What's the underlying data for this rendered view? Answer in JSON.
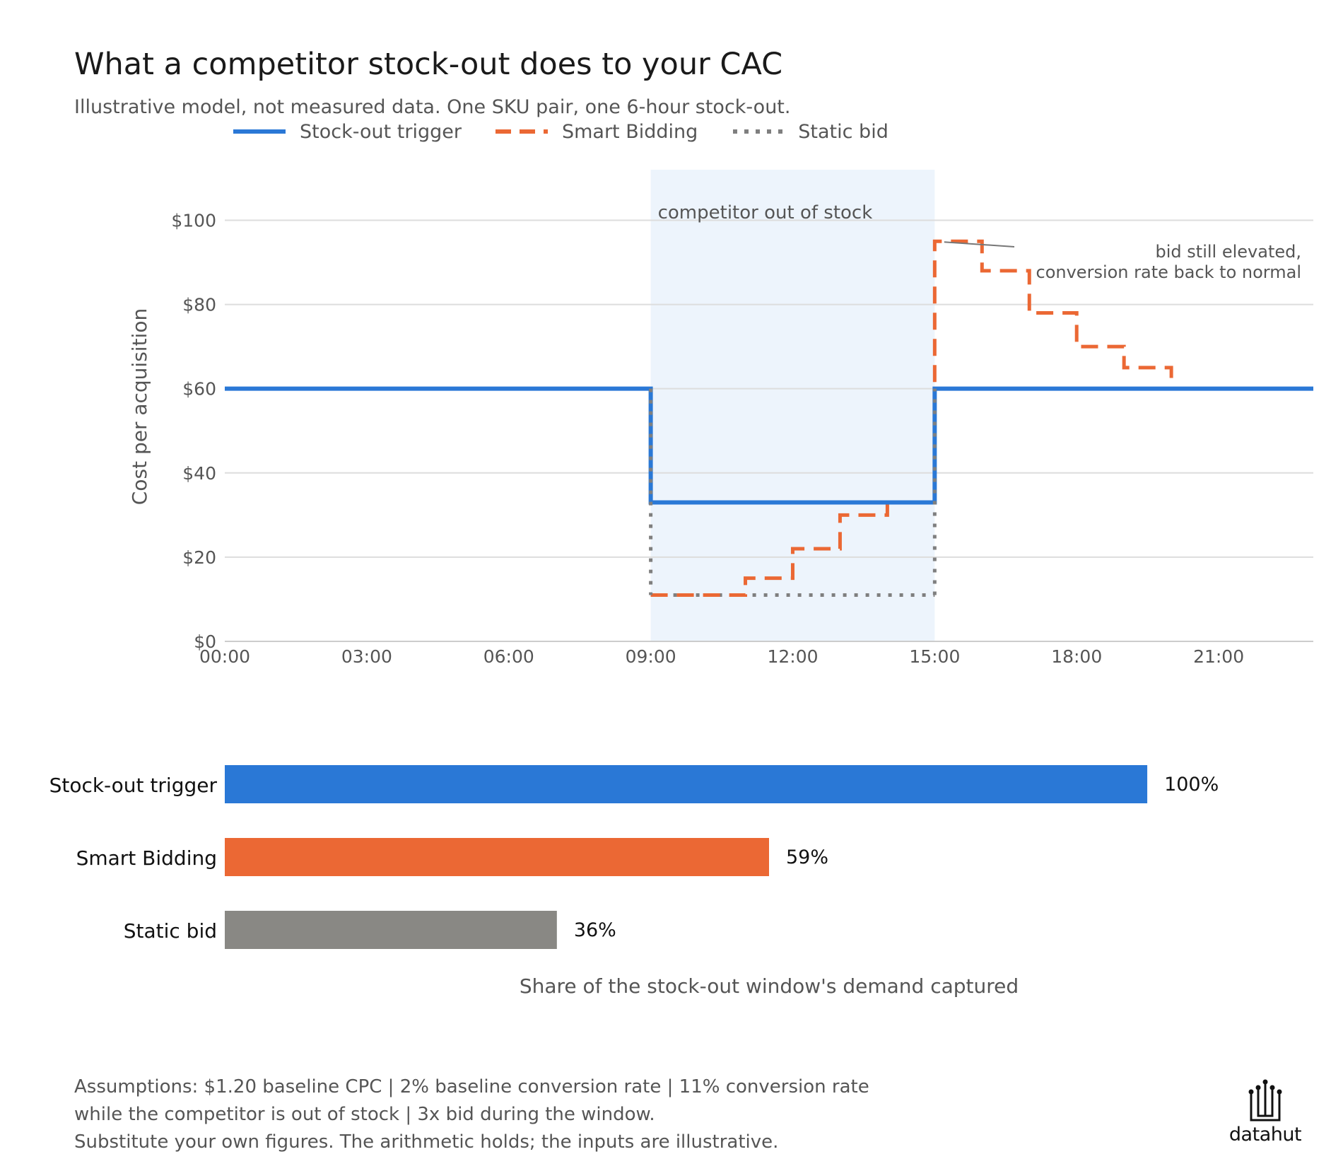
{
  "title": "What a competitor stock-out does to your CAC",
  "subtitle": "Illustrative model, not measured data. One SKU pair, one 6-hour stock-out.",
  "colors": {
    "trigger": "#2a78d6",
    "smart": "#eb6834",
    "static": "#7f7f7f",
    "static_bar": "#898884",
    "band": "#edf4fc",
    "grid": "#dddddd"
  },
  "legend": [
    {
      "label": "Stock-out trigger",
      "color": "#2a78d6",
      "style": "solid"
    },
    {
      "label": "Smart Bidding",
      "color": "#eb6834",
      "style": "dashed"
    },
    {
      "label": "Static bid",
      "color": "#7f7f7f",
      "style": "dotted"
    }
  ],
  "chart_data": [
    {
      "type": "line",
      "ylabel": "Cost per acquisition",
      "xlim": [
        "00:00",
        "23:00"
      ],
      "ylim": [
        0,
        112
      ],
      "x_ticks": [
        "00:00",
        "03:00",
        "06:00",
        "09:00",
        "12:00",
        "15:00",
        "18:00",
        "21:00"
      ],
      "y_ticks": [
        "$0",
        "$20",
        "$40",
        "$60",
        "$80",
        "$100"
      ],
      "grid": true,
      "legend_position": "top",
      "step": "post",
      "shaded_window": {
        "start": "09:00",
        "end": "15:00",
        "label": "competitor out of stock"
      },
      "annotation": {
        "text": [
          "bid still elevated,",
          "conversion rate back to normal"
        ],
        "points_to": {
          "x": "15:30",
          "y": 95
        }
      },
      "series": [
        {
          "name": "Stock-out trigger",
          "style": "solid",
          "x": [
            "00:00",
            "09:00",
            "15:00",
            "23:00"
          ],
          "y": [
            60,
            33,
            60,
            60
          ]
        },
        {
          "name": "Smart Bidding",
          "style": "dashed",
          "x": [
            "09:00",
            "10:00",
            "11:00",
            "12:00",
            "13:00",
            "14:00",
            "15:00",
            "16:00",
            "17:00",
            "18:00",
            "19:00",
            "20:00"
          ],
          "y": [
            11,
            11,
            15,
            22,
            30,
            33,
            95,
            88,
            78,
            70,
            65,
            60
          ]
        },
        {
          "name": "Static bid",
          "style": "dotted",
          "x": [
            "09:00",
            "15:00"
          ],
          "y": [
            11,
            11
          ]
        }
      ]
    },
    {
      "type": "bar",
      "orientation": "horizontal",
      "xlabel": "Share of the stock-out window's demand captured",
      "categories": [
        "Stock-out trigger",
        "Smart Bidding",
        "Static bid"
      ],
      "values": [
        100,
        59,
        36
      ],
      "value_labels": [
        "100%",
        "59%",
        "36%"
      ],
      "xlim": [
        0,
        118
      ]
    }
  ],
  "footnote": [
    "Assumptions: $1.20 baseline CPC  |  2% baseline conversion rate  |  11% conversion rate",
    "while the competitor is out of stock  |  3x bid during the window.",
    "Substitute your own figures. The arithmetic holds; the inputs are illustrative."
  ],
  "logo": {
    "text": "datahut"
  }
}
